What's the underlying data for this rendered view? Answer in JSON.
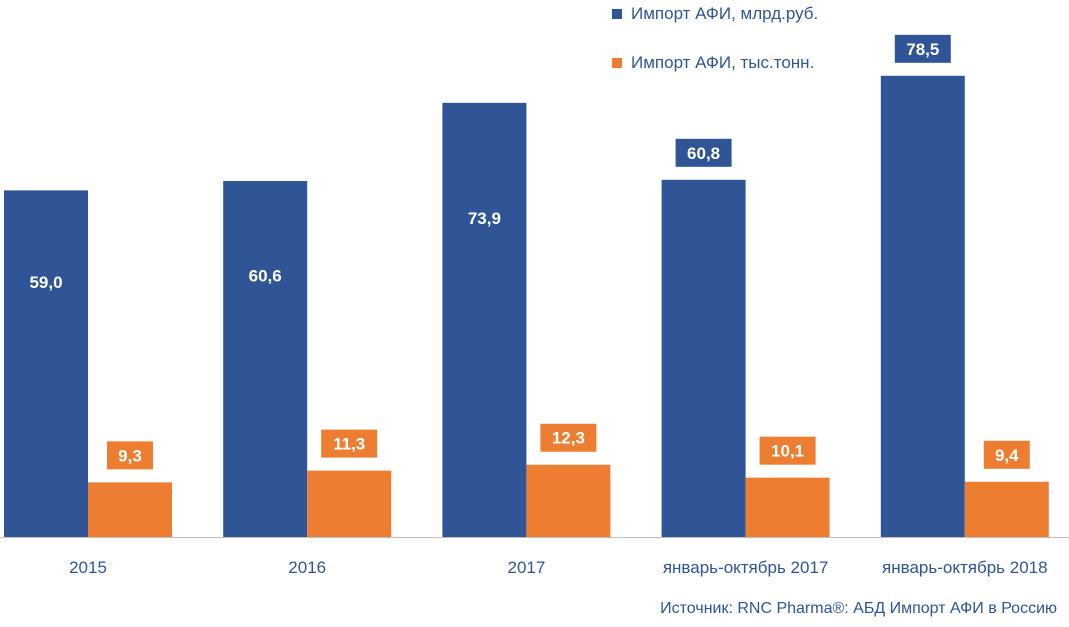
{
  "chart_data": {
    "type": "bar",
    "categories": [
      "2015",
      "2016",
      "2017",
      "январь-октябрь 2017",
      "январь-октябрь 2018"
    ],
    "series": [
      {
        "name": "Импорт АФИ, млрд.руб.",
        "values": [
          59.0,
          60.6,
          73.9,
          60.8,
          78.5
        ],
        "labels": [
          "59,0",
          "60,6",
          "73,9",
          "60,8",
          "78,5"
        ],
        "label_position": [
          "inside",
          "inside",
          "inside",
          "above",
          "above"
        ],
        "color": "#2f5597"
      },
      {
        "name": "Импорт АФИ, тыс.тонн.",
        "values": [
          9.3,
          11.3,
          12.3,
          10.1,
          9.4
        ],
        "labels": [
          "9,3",
          "11,3",
          "12,3",
          "10,1",
          "9,4"
        ],
        "label_position": [
          "above",
          "above",
          "above",
          "above",
          "above"
        ],
        "color": "#ed7d31"
      }
    ],
    "ylim": [
      0,
      88
    ],
    "grid": false,
    "legend": "top-right",
    "xlabel": "",
    "ylabel": "",
    "axis_color": "#bfbfbf",
    "label_text_color": "#ffffff",
    "tick_text_color": "#2f5597"
  },
  "source": "Источник: RNC Pharma®: АБД Импорт АФИ в Россию"
}
